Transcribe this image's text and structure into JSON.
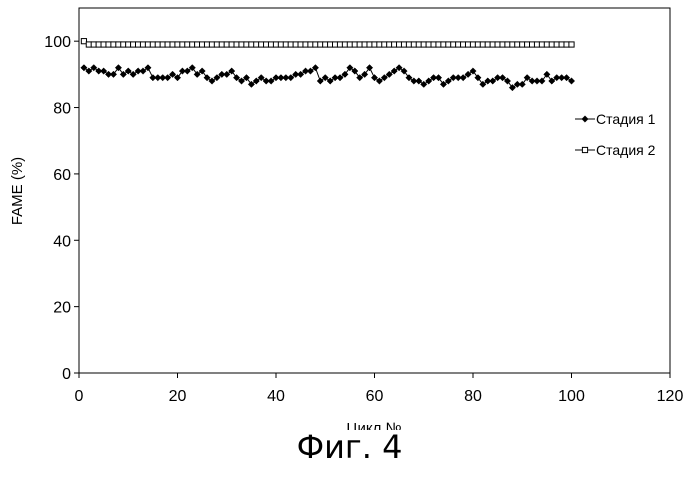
{
  "caption": "Фиг. 4",
  "chart_data": {
    "type": "line",
    "title": "",
    "xlabel": "Цикл №",
    "ylabel": "FAME (%)",
    "xlim": [
      0,
      120
    ],
    "ylim": [
      0,
      110
    ],
    "xticks": [
      0,
      20,
      40,
      60,
      80,
      100,
      120
    ],
    "yticks": [
      0,
      20,
      40,
      60,
      80,
      100
    ],
    "grid": false,
    "legend_position": "right",
    "series": [
      {
        "name": "Стадия 1",
        "marker": "filled-diamond",
        "color": "#000000",
        "x": [
          1,
          2,
          3,
          4,
          5,
          6,
          7,
          8,
          9,
          10,
          11,
          12,
          13,
          14,
          15,
          16,
          17,
          18,
          19,
          20,
          21,
          22,
          23,
          24,
          25,
          26,
          27,
          28,
          29,
          30,
          31,
          32,
          33,
          34,
          35,
          36,
          37,
          38,
          39,
          40,
          41,
          42,
          43,
          44,
          45,
          46,
          47,
          48,
          49,
          50,
          51,
          52,
          53,
          54,
          55,
          56,
          57,
          58,
          59,
          60,
          61,
          62,
          63,
          64,
          65,
          66,
          67,
          68,
          69,
          70,
          71,
          72,
          73,
          74,
          75,
          76,
          77,
          78,
          79,
          80,
          81,
          82,
          83,
          84,
          85,
          86,
          87,
          88,
          89,
          90,
          91,
          92,
          93,
          94,
          95,
          96,
          97,
          98,
          99,
          100
        ],
        "y": [
          92,
          91,
          92,
          91,
          91,
          90,
          90,
          92,
          90,
          91,
          90,
          91,
          91,
          92,
          89,
          89,
          89,
          89,
          90,
          89,
          91,
          91,
          92,
          90,
          91,
          89,
          88,
          89,
          90,
          90,
          91,
          89,
          88,
          89,
          87,
          88,
          89,
          88,
          88,
          89,
          89,
          89,
          89,
          90,
          90,
          91,
          91,
          92,
          88,
          89,
          88,
          89,
          89,
          90,
          92,
          91,
          89,
          90,
          92,
          89,
          88,
          89,
          90,
          91,
          92,
          91,
          89,
          88,
          88,
          87,
          88,
          89,
          89,
          87,
          88,
          89,
          89,
          89,
          90,
          91,
          89,
          87,
          88,
          88,
          89,
          89,
          88,
          86,
          87,
          87,
          89,
          88,
          88,
          88,
          90,
          88,
          89,
          89,
          89,
          88
        ]
      },
      {
        "name": "Стадия 2",
        "marker": "hollow-square",
        "color": "#000000",
        "x": [
          1,
          2,
          3,
          4,
          5,
          6,
          7,
          8,
          9,
          10,
          11,
          12,
          13,
          14,
          15,
          16,
          17,
          18,
          19,
          20,
          21,
          22,
          23,
          24,
          25,
          26,
          27,
          28,
          29,
          30,
          31,
          32,
          33,
          34,
          35,
          36,
          37,
          38,
          39,
          40,
          41,
          42,
          43,
          44,
          45,
          46,
          47,
          48,
          49,
          50,
          51,
          52,
          53,
          54,
          55,
          56,
          57,
          58,
          59,
          60,
          61,
          62,
          63,
          64,
          65,
          66,
          67,
          68,
          69,
          70,
          71,
          72,
          73,
          74,
          75,
          76,
          77,
          78,
          79,
          80,
          81,
          82,
          83,
          84,
          85,
          86,
          87,
          88,
          89,
          90,
          91,
          92,
          93,
          94,
          95,
          96,
          97,
          98,
          99,
          100
        ],
        "y": [
          100,
          99,
          99,
          99,
          99,
          99,
          99,
          99,
          99,
          99,
          99,
          99,
          99,
          99,
          99,
          99,
          99,
          99,
          99,
          99,
          99,
          99,
          99,
          99,
          99,
          99,
          99,
          99,
          99,
          99,
          99,
          99,
          99,
          99,
          99,
          99,
          99,
          99,
          99,
          99,
          99,
          99,
          99,
          99,
          99,
          99,
          99,
          99,
          99,
          99,
          99,
          99,
          99,
          99,
          99,
          99,
          99,
          99,
          99,
          99,
          99,
          99,
          99,
          99,
          99,
          99,
          99,
          99,
          99,
          99,
          99,
          99,
          99,
          99,
          99,
          99,
          99,
          99,
          99,
          99,
          99,
          99,
          99,
          99,
          99,
          99,
          99,
          99,
          99,
          99,
          99,
          99,
          99,
          99,
          99,
          99,
          99,
          99,
          99,
          99
        ]
      }
    ]
  }
}
